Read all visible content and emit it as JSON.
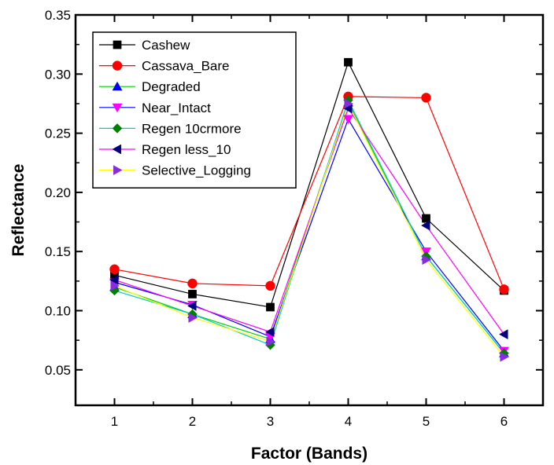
{
  "chart_data": {
    "type": "line",
    "xlabel": "Factor (Bands)",
    "ylabel": "Reflectance",
    "x": [
      1,
      2,
      3,
      4,
      5,
      6
    ],
    "xlim": [
      0.5,
      6.5
    ],
    "ylim": [
      0.02,
      0.35
    ],
    "xticks": [
      "1",
      "2",
      "3",
      "4",
      "5",
      "6"
    ],
    "yticks": [
      "0.05",
      "0.10",
      "0.15",
      "0.20",
      "0.25",
      "0.30",
      "0.35"
    ],
    "grid": false,
    "legend_position": "top-left",
    "series": [
      {
        "name": "Cashew",
        "color": "#000000",
        "marker": "square",
        "values": [
          0.13,
          0.114,
          0.103,
          0.31,
          0.178,
          0.117
        ]
      },
      {
        "name": "Cassava_Bare",
        "color": "#ff0000",
        "marker": "circle",
        "values": [
          0.135,
          0.123,
          0.121,
          0.281,
          0.28,
          0.118
        ]
      },
      {
        "name": "Degraded",
        "color": "#0000ff",
        "marker": "triangle-up",
        "values": [
          0.12,
          0.097,
          0.076,
          0.276,
          0.146,
          0.064
        ]
      },
      {
        "name": "Near_Intact",
        "color": "#ff00ff",
        "marker": "triangle-down",
        "values": [
          0.124,
          0.105,
          0.078,
          0.262,
          0.15,
          0.066
        ]
      },
      {
        "name": "Regen 10crmore",
        "color": "#008000",
        "marker": "diamond",
        "values": [
          0.117,
          0.097,
          0.071,
          0.278,
          0.146,
          0.064
        ]
      },
      {
        "name": "Regen less_10",
        "color": "#000080",
        "marker": "triangle-left",
        "values": [
          0.126,
          0.104,
          0.082,
          0.271,
          0.172,
          0.08
        ]
      },
      {
        "name": "Selective_Logging",
        "color": "#8a2be2",
        "marker": "triangle-right",
        "values": [
          0.121,
          0.094,
          0.074,
          0.275,
          0.143,
          0.061
        ]
      }
    ],
    "line_colors": [
      "#000000",
      "#ff0000",
      "#00cc00",
      "#0000ff",
      "#00cccc",
      "#ff00ff",
      "#ffff00"
    ]
  }
}
